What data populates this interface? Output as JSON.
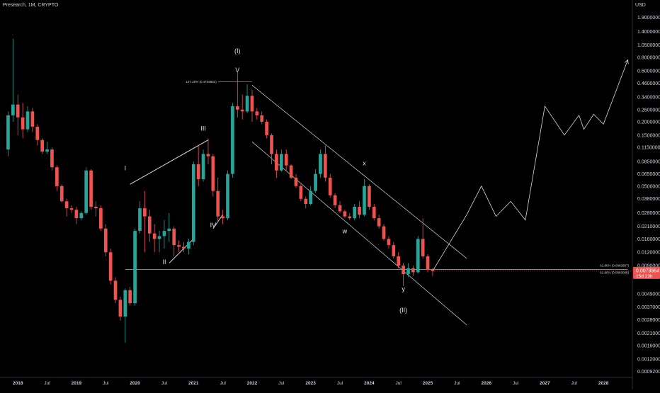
{
  "header": {
    "title": "Presearch, 1M, CRYPTO"
  },
  "currency": "USD",
  "colors": {
    "up": "#26a69a",
    "down": "#ef5350",
    "line": "#d9d9d9",
    "background": "#000000",
    "price_tag": "#ef5350"
  },
  "price_label": {
    "value": "0.0079964",
    "countdown": "15d 23h"
  },
  "fib_labels": [
    {
      "text": "127.20% (0.4726862)",
      "value": 0.4726862
    },
    {
      "text": "61.80% (0.0082897)",
      "value": 0.0082897
    },
    {
      "text": "61.80% (0.0083089)",
      "value": 0.0083089
    }
  ],
  "wave_labels": [
    {
      "text": "(I)",
      "date": "2021-10",
      "value": 0.88
    },
    {
      "text": "V",
      "date": "2021-10",
      "value": 0.58
    },
    {
      "text": "III",
      "date": "2021-03",
      "value": 0.165
    },
    {
      "text": "I",
      "date": "2019-11",
      "value": 0.07
    },
    {
      "text": "II",
      "date": "2020-07",
      "value": 0.0093
    },
    {
      "text": "IV",
      "date": "2021-05",
      "value": 0.0205
    },
    {
      "text": "x",
      "date": "2023-12",
      "value": 0.078
    },
    {
      "text": "w",
      "date": "2023-08",
      "value": 0.018
    },
    {
      "text": "y",
      "date": "2024-08",
      "value": 0.0052
    },
    {
      "text": "(II)",
      "date": "2024-08",
      "value": 0.0033
    }
  ],
  "chart_data": {
    "type": "candlestick",
    "title": "Presearch, 1M, CRYPTO",
    "y_scale": "log",
    "ylim": [
      0.00082,
      2.3
    ],
    "xlim": [
      "2017-11",
      "2028-06"
    ],
    "x_ticks": [
      {
        "label": "2018",
        "date": "2018-01",
        "year": true
      },
      {
        "label": "Jul",
        "date": "2018-07",
        "year": false
      },
      {
        "label": "2019",
        "date": "2019-01",
        "year": true
      },
      {
        "label": "Jul",
        "date": "2019-07",
        "year": false
      },
      {
        "label": "2020",
        "date": "2020-01",
        "year": true
      },
      {
        "label": "Jul",
        "date": "2020-07",
        "year": false
      },
      {
        "label": "2021",
        "date": "2021-01",
        "year": true
      },
      {
        "label": "Jul",
        "date": "2021-07",
        "year": false
      },
      {
        "label": "2022",
        "date": "2022-01",
        "year": true
      },
      {
        "label": "Jul",
        "date": "2022-07",
        "year": false
      },
      {
        "label": "2023",
        "date": "2023-01",
        "year": true
      },
      {
        "label": "Jul",
        "date": "2023-07",
        "year": false
      },
      {
        "label": "2024",
        "date": "2024-01",
        "year": true
      },
      {
        "label": "Jul",
        "date": "2024-07",
        "year": false
      },
      {
        "label": "2025",
        "date": "2025-01",
        "year": true
      },
      {
        "label": "Jul",
        "date": "2025-07",
        "year": false
      },
      {
        "label": "2026",
        "date": "2026-01",
        "year": true
      },
      {
        "label": "Jul",
        "date": "2026-07",
        "year": false
      },
      {
        "label": "2027",
        "date": "2027-01",
        "year": true
      },
      {
        "label": "Jul",
        "date": "2027-07",
        "year": false
      },
      {
        "label": "2028",
        "date": "2028-01",
        "year": true
      }
    ],
    "y_ticks": [
      "1.9000000",
      "1.4000000",
      "1.0500000",
      "0.8000000",
      "0.6000000",
      "0.4600000",
      "0.3400000",
      "0.2600000",
      "0.2000000",
      "0.1500000",
      "0.1150000",
      "0.0850000",
      "0.0650000",
      "0.0500000",
      "0.0380000",
      "0.0280000",
      "0.0210000",
      "0.0160000",
      "0.0120000",
      "0.0090000",
      "0.0049000",
      "0.0037000",
      "0.0028000",
      "0.0021000",
      "0.0016000",
      "0.0012000",
      "0.0009200"
    ],
    "candles": [
      {
        "date": "2017-11",
        "o": 0.11,
        "h": 0.25,
        "l": 0.095,
        "c": 0.23
      },
      {
        "date": "2017-12",
        "o": 0.23,
        "h": 1.2,
        "l": 0.2,
        "c": 0.29
      },
      {
        "date": "2018-01",
        "o": 0.29,
        "h": 0.36,
        "l": 0.15,
        "c": 0.22
      },
      {
        "date": "2018-02",
        "o": 0.22,
        "h": 0.3,
        "l": 0.14,
        "c": 0.17
      },
      {
        "date": "2018-03",
        "o": 0.17,
        "h": 0.28,
        "l": 0.16,
        "c": 0.25
      },
      {
        "date": "2018-04",
        "o": 0.25,
        "h": 0.27,
        "l": 0.16,
        "c": 0.18
      },
      {
        "date": "2018-05",
        "o": 0.18,
        "h": 0.19,
        "l": 0.12,
        "c": 0.135
      },
      {
        "date": "2018-06",
        "o": 0.135,
        "h": 0.14,
        "l": 0.1,
        "c": 0.105
      },
      {
        "date": "2018-07",
        "o": 0.105,
        "h": 0.13,
        "l": 0.1,
        "c": 0.11
      },
      {
        "date": "2018-08",
        "o": 0.11,
        "h": 0.115,
        "l": 0.07,
        "c": 0.075
      },
      {
        "date": "2018-09",
        "o": 0.075,
        "h": 0.078,
        "l": 0.045,
        "c": 0.05
      },
      {
        "date": "2018-10",
        "o": 0.05,
        "h": 0.052,
        "l": 0.035,
        "c": 0.036
      },
      {
        "date": "2018-11",
        "o": 0.036,
        "h": 0.038,
        "l": 0.026,
        "c": 0.031
      },
      {
        "date": "2018-12",
        "o": 0.031,
        "h": 0.033,
        "l": 0.028,
        "c": 0.03
      },
      {
        "date": "2019-01",
        "o": 0.03,
        "h": 0.032,
        "l": 0.022,
        "c": 0.025
      },
      {
        "date": "2019-02",
        "o": 0.025,
        "h": 0.029,
        "l": 0.024,
        "c": 0.028
      },
      {
        "date": "2019-03",
        "o": 0.028,
        "h": 0.075,
        "l": 0.027,
        "c": 0.07
      },
      {
        "date": "2019-04",
        "o": 0.07,
        "h": 0.072,
        "l": 0.03,
        "c": 0.032
      },
      {
        "date": "2019-05",
        "o": 0.032,
        "h": 0.036,
        "l": 0.026,
        "c": 0.031
      },
      {
        "date": "2019-06",
        "o": 0.031,
        "h": 0.033,
        "l": 0.019,
        "c": 0.02
      },
      {
        "date": "2019-07",
        "o": 0.02,
        "h": 0.022,
        "l": 0.011,
        "c": 0.012
      },
      {
        "date": "2019-08",
        "o": 0.012,
        "h": 0.013,
        "l": 0.006,
        "c": 0.0065
      },
      {
        "date": "2019-09",
        "o": 0.0065,
        "h": 0.007,
        "l": 0.004,
        "c": 0.0043
      },
      {
        "date": "2019-10",
        "o": 0.0043,
        "h": 0.0046,
        "l": 0.00275,
        "c": 0.003
      },
      {
        "date": "2019-11",
        "o": 0.003,
        "h": 0.0055,
        "l": 0.0017,
        "c": 0.0053
      },
      {
        "date": "2019-12",
        "o": 0.0053,
        "h": 0.0057,
        "l": 0.0038,
        "c": 0.004
      },
      {
        "date": "2020-01",
        "o": 0.004,
        "h": 0.02,
        "l": 0.0038,
        "c": 0.019
      },
      {
        "date": "2020-02",
        "o": 0.019,
        "h": 0.036,
        "l": 0.018,
        "c": 0.031
      },
      {
        "date": "2020-03",
        "o": 0.031,
        "h": 0.045,
        "l": 0.012,
        "c": 0.026
      },
      {
        "date": "2020-04",
        "o": 0.026,
        "h": 0.03,
        "l": 0.015,
        "c": 0.018
      },
      {
        "date": "2020-05",
        "o": 0.018,
        "h": 0.022,
        "l": 0.012,
        "c": 0.016
      },
      {
        "date": "2020-06",
        "o": 0.016,
        "h": 0.019,
        "l": 0.012,
        "c": 0.017
      },
      {
        "date": "2020-07",
        "o": 0.017,
        "h": 0.024,
        "l": 0.013,
        "c": 0.019
      },
      {
        "date": "2020-08",
        "o": 0.019,
        "h": 0.028,
        "l": 0.015,
        "c": 0.02
      },
      {
        "date": "2020-09",
        "o": 0.02,
        "h": 0.021,
        "l": 0.011,
        "c": 0.014
      },
      {
        "date": "2020-10",
        "o": 0.014,
        "h": 0.0155,
        "l": 0.012,
        "c": 0.0135
      },
      {
        "date": "2020-11",
        "o": 0.0135,
        "h": 0.015,
        "l": 0.012,
        "c": 0.013
      },
      {
        "date": "2020-12",
        "o": 0.013,
        "h": 0.016,
        "l": 0.0115,
        "c": 0.015
      },
      {
        "date": "2021-01",
        "o": 0.015,
        "h": 0.085,
        "l": 0.014,
        "c": 0.08
      },
      {
        "date": "2021-02",
        "o": 0.08,
        "h": 0.12,
        "l": 0.05,
        "c": 0.058
      },
      {
        "date": "2021-03",
        "o": 0.058,
        "h": 0.11,
        "l": 0.055,
        "c": 0.1
      },
      {
        "date": "2021-04",
        "o": 0.1,
        "h": 0.14,
        "l": 0.08,
        "c": 0.095
      },
      {
        "date": "2021-05",
        "o": 0.095,
        "h": 0.1,
        "l": 0.04,
        "c": 0.045
      },
      {
        "date": "2021-06",
        "o": 0.045,
        "h": 0.06,
        "l": 0.023,
        "c": 0.026
      },
      {
        "date": "2021-07",
        "o": 0.026,
        "h": 0.03,
        "l": 0.022,
        "c": 0.025
      },
      {
        "date": "2021-08",
        "o": 0.025,
        "h": 0.07,
        "l": 0.024,
        "c": 0.065
      },
      {
        "date": "2021-09",
        "o": 0.065,
        "h": 0.3,
        "l": 0.06,
        "c": 0.28
      },
      {
        "date": "2021-10",
        "o": 0.28,
        "h": 0.58,
        "l": 0.22,
        "c": 0.26
      },
      {
        "date": "2021-11",
        "o": 0.26,
        "h": 0.36,
        "l": 0.21,
        "c": 0.25
      },
      {
        "date": "2021-12",
        "o": 0.25,
        "h": 0.45,
        "l": 0.24,
        "c": 0.35
      },
      {
        "date": "2022-01",
        "o": 0.35,
        "h": 0.4,
        "l": 0.2,
        "c": 0.25
      },
      {
        "date": "2022-02",
        "o": 0.25,
        "h": 0.27,
        "l": 0.21,
        "c": 0.23
      },
      {
        "date": "2022-03",
        "o": 0.23,
        "h": 0.25,
        "l": 0.19,
        "c": 0.2
      },
      {
        "date": "2022-04",
        "o": 0.2,
        "h": 0.21,
        "l": 0.14,
        "c": 0.15
      },
      {
        "date": "2022-05",
        "o": 0.15,
        "h": 0.155,
        "l": 0.08,
        "c": 0.1
      },
      {
        "date": "2022-06",
        "o": 0.1,
        "h": 0.11,
        "l": 0.06,
        "c": 0.07
      },
      {
        "date": "2022-07",
        "o": 0.07,
        "h": 0.11,
        "l": 0.068,
        "c": 0.1
      },
      {
        "date": "2022-08",
        "o": 0.1,
        "h": 0.11,
        "l": 0.07,
        "c": 0.078
      },
      {
        "date": "2022-09",
        "o": 0.078,
        "h": 0.08,
        "l": 0.058,
        "c": 0.06
      },
      {
        "date": "2022-10",
        "o": 0.06,
        "h": 0.065,
        "l": 0.048,
        "c": 0.05
      },
      {
        "date": "2022-11",
        "o": 0.05,
        "h": 0.052,
        "l": 0.036,
        "c": 0.038
      },
      {
        "date": "2022-12",
        "o": 0.038,
        "h": 0.04,
        "l": 0.031,
        "c": 0.034
      },
      {
        "date": "2023-01",
        "o": 0.034,
        "h": 0.05,
        "l": 0.033,
        "c": 0.045
      },
      {
        "date": "2023-02",
        "o": 0.045,
        "h": 0.072,
        "l": 0.043,
        "c": 0.065
      },
      {
        "date": "2023-03",
        "o": 0.065,
        "h": 0.11,
        "l": 0.06,
        "c": 0.1
      },
      {
        "date": "2023-04",
        "o": 0.1,
        "h": 0.12,
        "l": 0.055,
        "c": 0.06
      },
      {
        "date": "2023-05",
        "o": 0.06,
        "h": 0.065,
        "l": 0.039,
        "c": 0.041
      },
      {
        "date": "2023-06",
        "o": 0.041,
        "h": 0.043,
        "l": 0.031,
        "c": 0.033
      },
      {
        "date": "2023-07",
        "o": 0.033,
        "h": 0.036,
        "l": 0.028,
        "c": 0.029
      },
      {
        "date": "2023-08",
        "o": 0.029,
        "h": 0.03,
        "l": 0.025,
        "c": 0.026
      },
      {
        "date": "2023-09",
        "o": 0.026,
        "h": 0.028,
        "l": 0.024,
        "c": 0.025
      },
      {
        "date": "2023-10",
        "o": 0.025,
        "h": 0.034,
        "l": 0.024,
        "c": 0.032
      },
      {
        "date": "2023-11",
        "o": 0.032,
        "h": 0.036,
        "l": 0.025,
        "c": 0.027
      },
      {
        "date": "2023-12",
        "o": 0.027,
        "h": 0.058,
        "l": 0.026,
        "c": 0.05
      },
      {
        "date": "2024-01",
        "o": 0.05,
        "h": 0.052,
        "l": 0.03,
        "c": 0.032
      },
      {
        "date": "2024-02",
        "o": 0.032,
        "h": 0.034,
        "l": 0.024,
        "c": 0.025
      },
      {
        "date": "2024-03",
        "o": 0.025,
        "h": 0.027,
        "l": 0.02,
        "c": 0.021
      },
      {
        "date": "2024-04",
        "o": 0.021,
        "h": 0.022,
        "l": 0.0155,
        "c": 0.016
      },
      {
        "date": "2024-05",
        "o": 0.016,
        "h": 0.017,
        "l": 0.013,
        "c": 0.014
      },
      {
        "date": "2024-06",
        "o": 0.014,
        "h": 0.015,
        "l": 0.0105,
        "c": 0.011
      },
      {
        "date": "2024-07",
        "o": 0.011,
        "h": 0.012,
        "l": 0.0085,
        "c": 0.009
      },
      {
        "date": "2024-08",
        "o": 0.009,
        "h": 0.0095,
        "l": 0.0058,
        "c": 0.0075
      },
      {
        "date": "2024-09",
        "o": 0.0075,
        "h": 0.0095,
        "l": 0.007,
        "c": 0.0085
      },
      {
        "date": "2024-10",
        "o": 0.0085,
        "h": 0.009,
        "l": 0.0072,
        "c": 0.0078
      },
      {
        "date": "2024-11",
        "o": 0.0078,
        "h": 0.017,
        "l": 0.0076,
        "c": 0.016
      },
      {
        "date": "2024-12",
        "o": 0.016,
        "h": 0.025,
        "l": 0.0105,
        "c": 0.011
      },
      {
        "date": "2025-01",
        "o": 0.011,
        "h": 0.0115,
        "l": 0.0078,
        "c": 0.0082
      },
      {
        "date": "2025-02",
        "o": 0.0082,
        "h": 0.0085,
        "l": 0.0072,
        "c": 0.0079964
      }
    ],
    "overlays": {
      "fib_line_upper": {
        "from": [
          "2021-06",
          0.4726862
        ],
        "to": [
          "2022-01",
          0.4726862
        ]
      },
      "fib_line_lower": {
        "from": [
          "2019-11",
          0.0083
        ],
        "to": [
          "2028-06",
          0.0083
        ]
      },
      "wave_trend_lines": [
        {
          "from": [
            "2019-12",
            0.052
          ],
          "to": [
            "2021-04",
            0.135
          ]
        },
        {
          "from": [
            "2020-08",
            0.0095
          ],
          "to": [
            "2021-01",
            0.016
          ]
        },
        {
          "from": [
            "2021-05",
            0.02
          ],
          "to": [
            "2021-07",
            0.027
          ]
        }
      ],
      "channel_upper": {
        "from": [
          "2022-01",
          0.44
        ],
        "to": [
          "2025-09",
          0.0105
        ]
      },
      "channel_lower": {
        "from": [
          "2022-01",
          0.13
        ],
        "to": [
          "2025-09",
          0.0025
        ]
      },
      "projection_path": [
        [
          "2025-02",
          0.008
        ],
        [
          "2025-09",
          0.027
        ],
        [
          "2025-12",
          0.05
        ],
        [
          "2026-03",
          0.026
        ],
        [
          "2026-06",
          0.036
        ],
        [
          "2026-09",
          0.024
        ],
        [
          "2027-01",
          0.28
        ],
        [
          "2027-05",
          0.15
        ],
        [
          "2027-08",
          0.23
        ],
        [
          "2027-09",
          0.17
        ],
        [
          "2027-11",
          0.235
        ],
        [
          "2028-01",
          0.19
        ],
        [
          "2028-06",
          0.76
        ]
      ]
    }
  }
}
